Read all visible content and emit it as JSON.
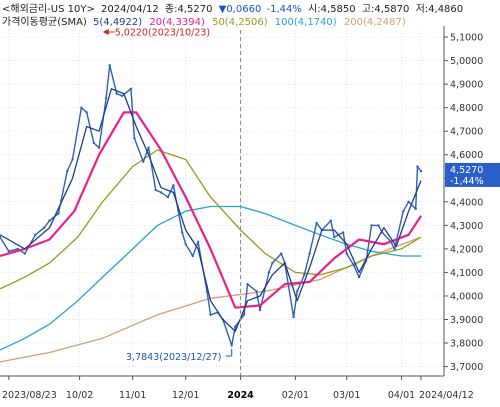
{
  "chart_data": {
    "type": "line",
    "header": {
      "line1": {
        "symbol": "<해외금리-US 10Y>",
        "date": "2024/04/12",
        "close_label": "종:4,5270",
        "change": "▼0,0660",
        "change_pct": "-1,44%",
        "open_label": "시:4,5850",
        "high_label": "고:4,5870",
        "low_label": "저:4,4860"
      },
      "line2": {
        "title": "가격이동평균(SMA)",
        "ma": [
          {
            "label": "5(4,4922)",
            "color": "#1a3f8f"
          },
          {
            "label": "20(4,3394)",
            "color": "#e8208c"
          },
          {
            "label": "50(4,2506)",
            "color": "#9a9a20"
          },
          {
            "label": "100(4,1740)",
            "color": "#2aa0d8"
          },
          {
            "label": "200(4,2487)",
            "color": "#d0a070"
          }
        ]
      }
    },
    "y_axis": {
      "range": [
        3.66,
        5.13
      ],
      "ticks": [
        {
          "v": 5.1,
          "label": "5,1000"
        },
        {
          "v": 5.0,
          "label": "5,0000"
        },
        {
          "v": 4.9,
          "label": "4,9000"
        },
        {
          "v": 4.8,
          "label": "4,8000"
        },
        {
          "v": 4.7,
          "label": "4,7000"
        },
        {
          "v": 4.6,
          "label": "4,6000"
        },
        {
          "v": 4.5,
          "label": "4,5000"
        },
        {
          "v": 4.4,
          "label": "4,4000"
        },
        {
          "v": 4.3,
          "label": "4,3000"
        },
        {
          "v": 4.2,
          "label": "4,2000"
        },
        {
          "v": 4.1,
          "label": "4,1000"
        },
        {
          "v": 4.0,
          "label": "4,0000"
        },
        {
          "v": 3.9,
          "label": "3,9000"
        },
        {
          "v": 3.8,
          "label": "3,8000"
        },
        {
          "v": 3.7,
          "label": "3,7000"
        }
      ]
    },
    "x_axis": {
      "range": [
        "2023-08-18",
        "2024-04-25"
      ],
      "ticks": [
        {
          "date": "2023-08-23",
          "label": "2023/08/23",
          "bold": false
        },
        {
          "date": "2023-10-02",
          "label": "10/02",
          "bold": false
        },
        {
          "date": "2023-11-01",
          "label": "11/01",
          "bold": false
        },
        {
          "date": "2023-12-01",
          "label": "12/01",
          "bold": false
        },
        {
          "date": "2024-01-01",
          "label": "2024",
          "bold": true
        },
        {
          "date": "2024-02-01",
          "label": "02/01",
          "bold": false
        },
        {
          "date": "2024-03-01",
          "label": "03/01",
          "bold": false
        },
        {
          "date": "2024-04-01",
          "label": "04/01",
          "bold": false
        },
        {
          "date": "2024-04-12",
          "label": "2024/04/12",
          "bold": false
        }
      ]
    },
    "grid": true,
    "annotations": {
      "high": {
        "label": "5,0220(2023/10/23)",
        "date": "2023-10-23",
        "value": 5.022
      },
      "low": {
        "label": "3,7843(2023/12/27)",
        "date": "2023-12-27",
        "value": 3.7843
      }
    },
    "last_price": {
      "value": 4.527,
      "label": "4,5270",
      "change": "-1,44%"
    },
    "series": [
      {
        "key": "close",
        "color": "#3060b0",
        "points": [
          [
            "2023-08-18",
            4.25
          ],
          [
            "2023-08-23",
            4.19
          ],
          [
            "2023-08-28",
            4.2
          ],
          [
            "2023-09-01",
            4.18
          ],
          [
            "2023-09-07",
            4.26
          ],
          [
            "2023-09-12",
            4.29
          ],
          [
            "2023-09-15",
            4.32
          ],
          [
            "2023-09-20",
            4.35
          ],
          [
            "2023-09-25",
            4.53
          ],
          [
            "2023-09-28",
            4.58
          ],
          [
            "2023-10-03",
            4.8
          ],
          [
            "2023-10-06",
            4.78
          ],
          [
            "2023-10-10",
            4.65
          ],
          [
            "2023-10-13",
            4.63
          ],
          [
            "2023-10-17",
            4.84
          ],
          [
            "2023-10-19",
            4.98
          ],
          [
            "2023-10-23",
            4.86
          ],
          [
            "2023-10-26",
            4.85
          ],
          [
            "2023-10-31",
            4.88
          ],
          [
            "2023-11-02",
            4.67
          ],
          [
            "2023-11-07",
            4.57
          ],
          [
            "2023-11-10",
            4.63
          ],
          [
            "2023-11-14",
            4.45
          ],
          [
            "2023-11-17",
            4.44
          ],
          [
            "2023-11-21",
            4.42
          ],
          [
            "2023-11-24",
            4.47
          ],
          [
            "2023-11-29",
            4.27
          ],
          [
            "2023-12-01",
            4.22
          ],
          [
            "2023-12-05",
            4.17
          ],
          [
            "2023-12-08",
            4.23
          ],
          [
            "2023-12-13",
            4.02
          ],
          [
            "2023-12-15",
            3.92
          ],
          [
            "2023-12-19",
            3.93
          ],
          [
            "2023-12-22",
            3.9
          ],
          [
            "2023-12-27",
            3.79
          ],
          [
            "2023-12-29",
            3.87
          ],
          [
            "2024-01-03",
            3.92
          ],
          [
            "2024-01-05",
            4.05
          ],
          [
            "2024-01-10",
            4.02
          ],
          [
            "2024-01-12",
            3.94
          ],
          [
            "2024-01-17",
            4.1
          ],
          [
            "2024-01-19",
            4.14
          ],
          [
            "2024-01-24",
            4.18
          ],
          [
            "2024-01-26",
            4.14
          ],
          [
            "2024-01-31",
            3.91
          ],
          [
            "2024-02-02",
            4.02
          ],
          [
            "2024-02-06",
            4.09
          ],
          [
            "2024-02-09",
            4.18
          ],
          [
            "2024-02-13",
            4.31
          ],
          [
            "2024-02-16",
            4.28
          ],
          [
            "2024-02-21",
            4.32
          ],
          [
            "2024-02-23",
            4.25
          ],
          [
            "2024-02-28",
            4.27
          ],
          [
            "2024-03-01",
            4.18
          ],
          [
            "2024-03-05",
            4.13
          ],
          [
            "2024-03-08",
            4.08
          ],
          [
            "2024-03-12",
            4.15
          ],
          [
            "2024-03-15",
            4.3
          ],
          [
            "2024-03-19",
            4.3
          ],
          [
            "2024-03-21",
            4.27
          ],
          [
            "2024-03-26",
            4.23
          ],
          [
            "2024-03-28",
            4.2
          ],
          [
            "2024-04-02",
            4.36
          ],
          [
            "2024-04-05",
            4.4
          ],
          [
            "2024-04-09",
            4.37
          ],
          [
            "2024-04-10",
            4.55
          ],
          [
            "2024-04-12",
            4.53
          ]
        ]
      },
      {
        "key": "ma5",
        "color": "#1a3f8f",
        "points": [
          [
            "2023-08-18",
            4.26
          ],
          [
            "2023-09-01",
            4.2
          ],
          [
            "2023-09-15",
            4.29
          ],
          [
            "2023-09-28",
            4.5
          ],
          [
            "2023-10-06",
            4.72
          ],
          [
            "2023-10-13",
            4.7
          ],
          [
            "2023-10-20",
            4.88
          ],
          [
            "2023-10-27",
            4.86
          ],
          [
            "2023-11-03",
            4.72
          ],
          [
            "2023-11-10",
            4.6
          ],
          [
            "2023-11-17",
            4.46
          ],
          [
            "2023-11-24",
            4.44
          ],
          [
            "2023-12-01",
            4.28
          ],
          [
            "2023-12-08",
            4.2
          ],
          [
            "2023-12-15",
            3.98
          ],
          [
            "2023-12-22",
            3.9
          ],
          [
            "2023-12-29",
            3.85
          ],
          [
            "2024-01-05",
            3.98
          ],
          [
            "2024-01-12",
            4.0
          ],
          [
            "2024-01-19",
            4.09
          ],
          [
            "2024-01-26",
            4.14
          ],
          [
            "2024-02-02",
            3.98
          ],
          [
            "2024-02-09",
            4.12
          ],
          [
            "2024-02-16",
            4.28
          ],
          [
            "2024-02-23",
            4.28
          ],
          [
            "2024-03-01",
            4.22
          ],
          [
            "2024-03-08",
            4.1
          ],
          [
            "2024-03-15",
            4.2
          ],
          [
            "2024-03-22",
            4.29
          ],
          [
            "2024-03-29",
            4.21
          ],
          [
            "2024-04-05",
            4.36
          ],
          [
            "2024-04-12",
            4.49
          ]
        ]
      },
      {
        "key": "ma20",
        "color": "#e8208c",
        "points": [
          [
            "2023-08-18",
            4.17
          ],
          [
            "2023-09-01",
            4.2
          ],
          [
            "2023-09-15",
            4.24
          ],
          [
            "2023-09-29",
            4.36
          ],
          [
            "2023-10-13",
            4.6
          ],
          [
            "2023-10-27",
            4.78
          ],
          [
            "2023-11-03",
            4.78
          ],
          [
            "2023-11-17",
            4.62
          ],
          [
            "2023-12-01",
            4.42
          ],
          [
            "2023-12-15",
            4.2
          ],
          [
            "2023-12-29",
            3.95
          ],
          [
            "2024-01-12",
            3.96
          ],
          [
            "2024-01-26",
            4.05
          ],
          [
            "2024-02-09",
            4.06
          ],
          [
            "2024-02-23",
            4.16
          ],
          [
            "2024-03-08",
            4.24
          ],
          [
            "2024-03-22",
            4.22
          ],
          [
            "2024-04-05",
            4.26
          ],
          [
            "2024-04-12",
            4.34
          ]
        ]
      },
      {
        "key": "ma50",
        "color": "#9a9a20",
        "points": [
          [
            "2023-08-18",
            4.03
          ],
          [
            "2023-09-01",
            4.08
          ],
          [
            "2023-09-15",
            4.14
          ],
          [
            "2023-10-01",
            4.25
          ],
          [
            "2023-10-15",
            4.4
          ],
          [
            "2023-11-01",
            4.55
          ],
          [
            "2023-11-15",
            4.62
          ],
          [
            "2023-12-01",
            4.58
          ],
          [
            "2023-12-15",
            4.42
          ],
          [
            "2024-01-01",
            4.28
          ],
          [
            "2024-01-15",
            4.18
          ],
          [
            "2024-02-01",
            4.1
          ],
          [
            "2024-02-15",
            4.09
          ],
          [
            "2024-03-01",
            4.12
          ],
          [
            "2024-03-15",
            4.17
          ],
          [
            "2024-04-01",
            4.2
          ],
          [
            "2024-04-12",
            4.25
          ]
        ]
      },
      {
        "key": "ma100",
        "color": "#2aa0d8",
        "points": [
          [
            "2023-08-18",
            3.77
          ],
          [
            "2023-09-01",
            3.82
          ],
          [
            "2023-09-15",
            3.88
          ],
          [
            "2023-10-01",
            3.98
          ],
          [
            "2023-10-15",
            4.08
          ],
          [
            "2023-11-01",
            4.2
          ],
          [
            "2023-11-15",
            4.3
          ],
          [
            "2023-12-01",
            4.36
          ],
          [
            "2023-12-15",
            4.38
          ],
          [
            "2024-01-01",
            4.38
          ],
          [
            "2024-01-15",
            4.35
          ],
          [
            "2024-02-01",
            4.3
          ],
          [
            "2024-02-15",
            4.26
          ],
          [
            "2024-03-01",
            4.22
          ],
          [
            "2024-03-15",
            4.19
          ],
          [
            "2024-04-01",
            4.17
          ],
          [
            "2024-04-12",
            4.17
          ]
        ]
      },
      {
        "key": "ma200",
        "color": "#d0a070",
        "points": [
          [
            "2023-08-18",
            3.72
          ],
          [
            "2023-09-15",
            3.76
          ],
          [
            "2023-10-15",
            3.82
          ],
          [
            "2023-11-15",
            3.92
          ],
          [
            "2023-12-15",
            3.99
          ],
          [
            "2024-01-15",
            4.02
          ],
          [
            "2024-02-15",
            4.07
          ],
          [
            "2024-03-15",
            4.17
          ],
          [
            "2024-04-12",
            4.25
          ]
        ]
      }
    ]
  }
}
